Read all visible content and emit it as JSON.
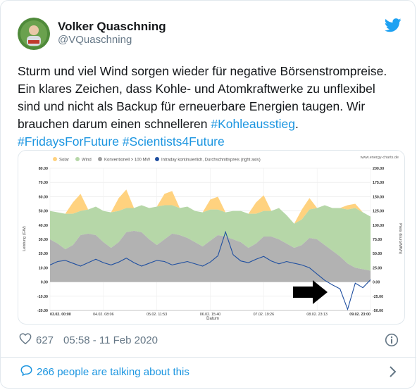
{
  "author": {
    "name": "Volker Quaschning",
    "handle": "@VQuaschning"
  },
  "tweet": {
    "line1": "Sturm und viel Wind sorgen wieder für negative Börsenstrompreise.",
    "line2": "Ein klares Zeichen, dass Kohle- und Atomkraftwerke zu unflexibel",
    "line3": "sind und nicht als Backup für erneuerbare Energien taugen. Wir",
    "line4_prefix": "brauchen darum einen schnelleren ",
    "hashtag1": "#Kohleausstieg",
    "line4_suffix": ".",
    "hashtag2": "#FridaysForFuture",
    "hashtag3": "#Scientists4Future"
  },
  "chart_data": {
    "type": "area",
    "source": "www.energy-charts.de",
    "legend": [
      "Solar",
      "Wind",
      "Konventionell > 100 MW",
      "Intraday kontinuierlich, Durchschnittspreis (right axis)"
    ],
    "xlabel": "Datum",
    "ylabel_left": "Leistung (GW)",
    "ylabel_right": "Preis (Euro/MWh)",
    "ylim_left": [
      -20,
      80
    ],
    "ylim_right": [
      -50,
      200
    ],
    "yticks_left": [
      "80.00",
      "70.00",
      "60.00",
      "50.00",
      "40.00",
      "30.00",
      "20.00",
      "10.00",
      "0.00",
      "-10.00",
      "-20.00"
    ],
    "yticks_right": [
      "200.00",
      "175.00",
      "150.00",
      "125.00",
      "100.00",
      "75.00",
      "50.00",
      "25.00",
      "0.00",
      "-25.00",
      "-50.00"
    ],
    "xticks": [
      "03.02. 00:00",
      "04.02. 08:06",
      "05.02. 11:53",
      "06.02. 15:40",
      "07.02. 19:26",
      "08.02. 23:13",
      "09.02. 23:00"
    ],
    "x_hours": [
      0,
      4,
      8,
      12,
      16,
      20,
      24,
      28,
      32,
      36,
      40,
      44,
      48,
      52,
      56,
      60,
      64,
      68,
      72,
      76,
      80,
      84,
      88,
      92,
      96,
      100,
      104,
      108,
      112,
      116,
      120,
      124,
      128,
      132,
      136,
      140,
      144,
      148,
      152,
      156,
      160,
      164,
      168
    ],
    "conventional": [
      30,
      27,
      23,
      26,
      33,
      34,
      33,
      28,
      24,
      28,
      35,
      36,
      35,
      30,
      26,
      30,
      34,
      33,
      31,
      28,
      25,
      29,
      33,
      32,
      30,
      28,
      24,
      27,
      32,
      32,
      30,
      27,
      24,
      26,
      31,
      30,
      26,
      22,
      18,
      13,
      10,
      9,
      8
    ],
    "wind": [
      20,
      22,
      25,
      22,
      17,
      17,
      20,
      22,
      25,
      22,
      17,
      16,
      19,
      22,
      27,
      24,
      20,
      19,
      22,
      22,
      24,
      22,
      18,
      17,
      20,
      22,
      24,
      21,
      18,
      18,
      22,
      20,
      17,
      18,
      20,
      22,
      28,
      30,
      34,
      38,
      42,
      40,
      38
    ],
    "solar": [
      0,
      0,
      0,
      8,
      12,
      0,
      0,
      0,
      0,
      9,
      13,
      0,
      0,
      0,
      0,
      8,
      10,
      0,
      0,
      0,
      0,
      7,
      9,
      0,
      0,
      0,
      0,
      8,
      11,
      0,
      0,
      0,
      0,
      7,
      8,
      0,
      0,
      0,
      0,
      3,
      3,
      0,
      0
    ],
    "price": [
      30,
      36,
      38,
      33,
      28,
      34,
      40,
      34,
      30,
      35,
      42,
      34,
      28,
      33,
      38,
      36,
      30,
      33,
      36,
      32,
      28,
      35,
      46,
      88,
      48,
      37,
      34,
      40,
      45,
      37,
      32,
      36,
      33,
      30,
      25,
      14,
      3,
      -5,
      -12,
      -48,
      -2,
      -10,
      4
    ]
  },
  "footer": {
    "likes": "627",
    "timestamp": "05:58 - 11 Feb 2020",
    "talking": "266 people are talking about this"
  },
  "colors": {
    "link": "#1b95e0",
    "solar": "#ffd27f",
    "wind": "#b6d7a8",
    "conventional": "#b2b2b2",
    "price": "#1f4fa0"
  },
  "icons": [
    "twitter-bird-icon",
    "heart-icon",
    "info-icon",
    "speech-bubble-icon",
    "chevron-right-icon",
    "black-arrow-icon"
  ]
}
